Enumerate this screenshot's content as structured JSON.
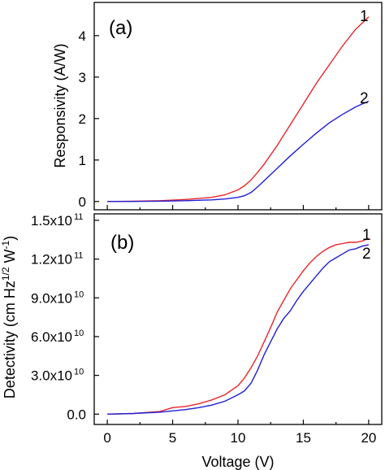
{
  "chart_data": [
    {
      "type": "line",
      "panel_label": "(a)",
      "xlabel": "",
      "ylabel": "Responsivity (A/W)",
      "xlim": [
        -1,
        21
      ],
      "ylim": [
        -0.2,
        4.8
      ],
      "xticks": [
        0,
        5,
        10,
        15,
        20
      ],
      "yticks": [
        0,
        1,
        2,
        3,
        4
      ],
      "ytick_labels": [
        "0",
        "1",
        "2",
        "3",
        "4"
      ],
      "show_x_tick_labels": false,
      "series": [
        {
          "name": "1",
          "color": "#e8262a",
          "x": [
            0,
            2,
            4,
            6,
            8,
            9,
            10,
            10.5,
            11,
            11.5,
            12,
            13,
            14,
            15,
            16,
            17,
            18,
            19,
            20
          ],
          "y": [
            0,
            0.005,
            0.02,
            0.05,
            0.1,
            0.16,
            0.28,
            0.38,
            0.52,
            0.7,
            0.9,
            1.35,
            1.85,
            2.35,
            2.85,
            3.3,
            3.75,
            4.15,
            4.45
          ]
        },
        {
          "name": "2",
          "color": "#1f1fd6",
          "x": [
            0,
            2,
            4,
            6,
            8,
            9,
            10,
            10.5,
            11,
            11.5,
            12,
            13,
            14,
            15,
            16,
            17,
            18,
            19,
            20
          ],
          "y": [
            0,
            0.002,
            0.008,
            0.02,
            0.04,
            0.06,
            0.1,
            0.14,
            0.22,
            0.35,
            0.5,
            0.8,
            1.1,
            1.38,
            1.65,
            1.9,
            2.1,
            2.28,
            2.42
          ]
        }
      ]
    },
    {
      "type": "line",
      "panel_label": "(b)",
      "xlabel": "Voltage (V)",
      "ylabel": "Detectivity (cm Hz",
      "ylabel_sup1": "1/2",
      "ylabel_mid": " W",
      "ylabel_sup2": "-1",
      "ylabel_end": ")",
      "xlim": [
        -1,
        21
      ],
      "ylim": [
        -8000000000,
        155000000000
      ],
      "xticks": [
        0,
        5,
        10,
        15,
        20
      ],
      "xtick_labels": [
        "0",
        "5",
        "10",
        "15",
        "20"
      ],
      "yticks": [
        0,
        30000000000,
        60000000000,
        90000000000,
        120000000000,
        150000000000
      ],
      "ytick_labels": [
        {
          "mant": "0.0",
          "exp": ""
        },
        {
          "mant": "3.0x10",
          "exp": "10"
        },
        {
          "mant": "6.0x10",
          "exp": "10"
        },
        {
          "mant": "9.0x10",
          "exp": "10"
        },
        {
          "mant": "1.2x10",
          "exp": "11"
        },
        {
          "mant": "1.5x10",
          "exp": "11"
        }
      ],
      "show_x_tick_labels": true,
      "series": [
        {
          "name": "1",
          "color": "#e8262a",
          "x": [
            0,
            2,
            4,
            5,
            6,
            7,
            8,
            9,
            10,
            10.5,
            11,
            11.5,
            12,
            12.5,
            13,
            13.5,
            14,
            14.5,
            15,
            15.5,
            16,
            16.5,
            17,
            17.5,
            18,
            18.5,
            19,
            19.5,
            20
          ],
          "y": [
            0,
            500000000,
            2000000000,
            5000000000,
            6000000000,
            8000000000,
            11000000000,
            15000000000,
            22000000000,
            28000000000,
            36000000000,
            45000000000,
            56000000000,
            67000000000,
            79000000000,
            88000000000,
            97000000000,
            104000000000,
            111000000000,
            117000000000,
            122000000000,
            126000000000,
            129000000000,
            131000000000,
            132000000000,
            133000000000,
            133000000000,
            134000000000,
            136000000000
          ]
        },
        {
          "name": "2",
          "color": "#1f1fd6",
          "x": [
            0,
            2,
            4,
            5,
            6,
            7,
            8,
            9,
            10,
            10.5,
            11,
            11.5,
            12,
            12.5,
            13,
            13.5,
            14,
            14.5,
            15,
            15.5,
            16,
            16.5,
            17,
            17.5,
            18,
            18.5,
            19,
            19.5,
            20
          ],
          "y": [
            0,
            500000000,
            1500000000,
            2500000000,
            3500000000,
            5000000000,
            7000000000,
            10000000000,
            15000000000,
            18000000000,
            24000000000,
            34000000000,
            46000000000,
            56000000000,
            66000000000,
            74000000000,
            80000000000,
            88000000000,
            95000000000,
            101000000000,
            107000000000,
            113000000000,
            118000000000,
            121000000000,
            124000000000,
            127000000000,
            128000000000,
            130000000000,
            131000000000
          ]
        }
      ]
    }
  ]
}
